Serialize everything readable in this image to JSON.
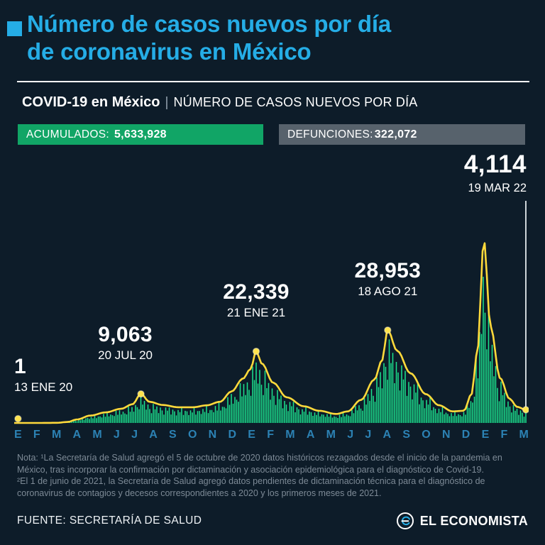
{
  "colors": {
    "background": "#0d1c29",
    "accent_cyan": "#25ade6",
    "pill_green": "#11a566",
    "pill_gray": "#57626c",
    "bar_green": "#1ce38f",
    "line_yellow": "#ffd93b",
    "dot_yellow": "#ffe34d",
    "axis_blue": "#2c82b4",
    "note_gray": "#7d8a96"
  },
  "header": {
    "title_line1": "Número de casos nuevos por día",
    "title_line2": "de coronavirus en México"
  },
  "subheader": {
    "title": "COVID-19 en México",
    "separator": "|",
    "subtitle": "NÚMERO DE CASOS NUEVOS POR DÍA"
  },
  "stats": [
    {
      "label": "ACUMULADOS:",
      "value": "5,633,928"
    },
    {
      "label": "DEFUNCIONES:",
      "value": "322,072"
    }
  ],
  "chart_data": {
    "type": "area",
    "title": "COVID-19 en México — Número de casos nuevos por día",
    "x_axis_labels": [
      "E",
      "F",
      "M",
      "A",
      "M",
      "J",
      "J",
      "A",
      "S",
      "O",
      "N",
      "D",
      "E",
      "F",
      "M",
      "A",
      "M",
      "J",
      "J",
      "A",
      "S",
      "O",
      "N",
      "D",
      "E",
      "F",
      "M"
    ],
    "x_axis_unit": "meses (ENE 2020 – MAR 2022)",
    "ylim": [
      0,
      62000
    ],
    "grid": false,
    "legend": "none",
    "series": [
      {
        "name": "Casos nuevos por día",
        "points": [
          [
            0,
            0
          ],
          [
            0.2,
            1
          ],
          [
            1.2,
            3
          ],
          [
            2.2,
            40
          ],
          [
            2.8,
            300
          ],
          [
            3.3,
            1100
          ],
          [
            4.0,
            2300
          ],
          [
            4.8,
            3300
          ],
          [
            5.6,
            4400
          ],
          [
            6.2,
            5800
          ],
          [
            6.65,
            9063
          ],
          [
            7.1,
            6600
          ],
          [
            7.8,
            5600
          ],
          [
            8.6,
            4900
          ],
          [
            9.4,
            4900
          ],
          [
            10.1,
            5500
          ],
          [
            10.8,
            6600
          ],
          [
            11.4,
            9800
          ],
          [
            12.0,
            13800
          ],
          [
            12.4,
            16800
          ],
          [
            12.7,
            22339
          ],
          [
            13.0,
            18500
          ],
          [
            13.6,
            12500
          ],
          [
            14.3,
            8000
          ],
          [
            15.2,
            5200
          ],
          [
            16.0,
            3800
          ],
          [
            16.9,
            2800
          ],
          [
            17.5,
            3600
          ],
          [
            18.2,
            7200
          ],
          [
            18.9,
            13500
          ],
          [
            19.3,
            19500
          ],
          [
            19.6,
            28953
          ],
          [
            20.1,
            22500
          ],
          [
            20.8,
            15500
          ],
          [
            21.6,
            9000
          ],
          [
            22.3,
            5500
          ],
          [
            23.0,
            3600
          ],
          [
            23.6,
            3800
          ],
          [
            24.0,
            9000
          ],
          [
            24.3,
            22000
          ],
          [
            24.65,
            57000
          ],
          [
            25.0,
            30000
          ],
          [
            25.5,
            14000
          ],
          [
            26.0,
            7500
          ],
          [
            26.4,
            5000
          ],
          [
            26.85,
            4114
          ]
        ]
      }
    ],
    "annotations": [
      {
        "value": 1,
        "value_label": "1",
        "date": "13 ENE 20",
        "x": 0.2,
        "placement": "left",
        "dx": 0
      },
      {
        "value": 9063,
        "value_label": "9,063",
        "date": "20 JUL 20",
        "x": 6.65,
        "placement": "center",
        "dx": -22
      },
      {
        "value": 22339,
        "value_label": "22,339",
        "date": "21 ENE 21",
        "x": 12.7,
        "placement": "center",
        "dx": 0
      },
      {
        "value": 28953,
        "value_label": "28,953",
        "date": "18 AGO 21",
        "x": 19.6,
        "placement": "center",
        "dx": 0
      },
      {
        "value": 4114,
        "value_label": "4,114",
        "date": "19 MAR 22",
        "x": 26.85,
        "placement": "top-right",
        "dx": 0
      }
    ]
  },
  "note": {
    "text": "Nota: ¹La Secretaría de Salud agregó el 5 de octubre de 2020 datos históricos rezagados desde el inicio de la pandemia en\nMéxico, tras incorporar la confirmación por dictaminación y asociación epidemiológica para el diagnóstico de Covid-19.\n²El 1 de junio de 2021, la Secretaría de Salud agregó datos pendientes de dictaminación técnica para el diagnóstico de\ncoronavirus de contagios y decesos correspondientes a 2020 y los primeros meses de 2021."
  },
  "footer": {
    "source": "FUENTE: SECRETARÍA DE SALUD",
    "brand": "EL ECONOMISTA"
  }
}
